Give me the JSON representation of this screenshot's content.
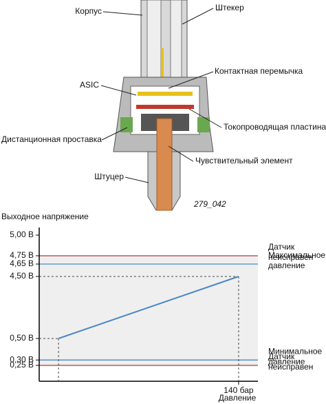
{
  "diagram": {
    "labels": [
      "Корпус",
      "Штекер",
      "Контактная перемычка",
      "ASIC",
      "Токопроводящая пластина",
      "Дистанционная проставка",
      "Чувствительный элемент",
      "Штуцер"
    ],
    "figure_id": "279_042"
  },
  "chart_data": {
    "type": "line",
    "y_label": "Выходное напряжение",
    "x_label": "Давление",
    "x": [
      0,
      140
    ],
    "xlim": [
      -15,
      155
    ],
    "xticks": [
      {
        "value": 140,
        "label": "140 бар"
      }
    ],
    "ylim": [
      0.25,
      5.0
    ],
    "yticks": [
      {
        "value": 5.0,
        "label": "5,00 В"
      },
      {
        "value": 4.75,
        "label": "4,75 В"
      },
      {
        "value": 4.65,
        "label": "4,65 В"
      },
      {
        "value": 4.5,
        "label": "4,50 В"
      },
      {
        "value": 0.5,
        "label": "0,50 В"
      },
      {
        "value": 0.3,
        "label": "0,30 В"
      },
      {
        "value": 0.25,
        "label": "0,25 В"
      }
    ],
    "series": [
      {
        "color": "#4a86c8",
        "values": [
          0.5,
          4.5
        ]
      }
    ],
    "hlines": [
      {
        "value": 4.75,
        "color": "#b03a3a",
        "label": [
          "Датчик",
          "неисправен"
        ]
      },
      {
        "value": 4.65,
        "color": "#4a86c8",
        "label": [
          "Максимальное",
          "давление"
        ]
      },
      {
        "value": 0.3,
        "color": "#4a86c8",
        "label": [
          "Минимальное",
          "давление"
        ]
      },
      {
        "value": 0.25,
        "color": "#b03a3a",
        "label": [
          "Датчик",
          "неисправен"
        ]
      }
    ]
  }
}
